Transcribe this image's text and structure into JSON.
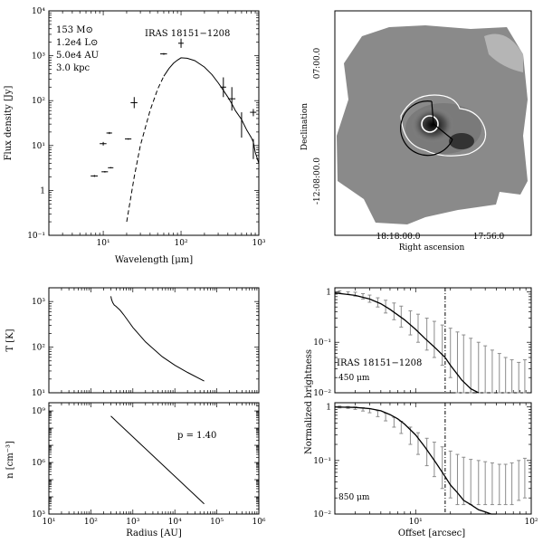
{
  "chart_data": [
    {
      "type": "scatter",
      "name": "sed",
      "xlabel": "Wavelength [μm]",
      "ylabel": "Flux density [Jy]",
      "xscale": "log",
      "yscale": "log",
      "xlim": [
        2,
        1000
      ],
      "ylim": [
        0.1,
        10000
      ],
      "xticks": [
        {
          "v": 10,
          "t": "10¹"
        },
        {
          "v": 100,
          "t": "10²"
        },
        {
          "v": 1000,
          "t": "10³"
        }
      ],
      "yticks": [
        {
          "v": 0.1,
          "t": "10⁻¹"
        },
        {
          "v": 1,
          "t": "1"
        },
        {
          "v": 10,
          "t": "10¹"
        },
        {
          "v": 100,
          "t": "10²"
        },
        {
          "v": 1000,
          "t": "10³"
        },
        {
          "v": 10000,
          "t": "10⁴"
        }
      ],
      "object": "IRAS 18151−1208",
      "annotations": [
        "153 M⊙",
        "1.2e4 L⊙",
        "5.0e4 AU",
        "3.0 kpc"
      ],
      "points": [
        {
          "x": 7.7,
          "y": 2.1,
          "hx": 0.8,
          "lo": 2.0,
          "hi": 2.2
        },
        {
          "x": 10,
          "y": 11,
          "hx": 1.0,
          "lo": 10,
          "hi": 12
        },
        {
          "x": 10.5,
          "y": 2.6,
          "hx": 1.0,
          "lo": 2.5,
          "hi": 2.7
        },
        {
          "x": 12,
          "y": 19,
          "hx": 1.0,
          "lo": 18,
          "hi": 20
        },
        {
          "x": 12.5,
          "y": 3.2,
          "hx": 1.0,
          "lo": 3.1,
          "hi": 3.3
        },
        {
          "x": 21,
          "y": 14,
          "hx": 2.0,
          "lo": 13.5,
          "hi": 14.5
        },
        {
          "x": 25,
          "y": 90,
          "hx": 2.5,
          "lo": 68,
          "hi": 120
        },
        {
          "x": 60,
          "y": 1100,
          "hx": 6,
          "lo": 1050,
          "hi": 1150
        },
        {
          "x": 100,
          "y": 1900,
          "hx": 8,
          "lo": 1500,
          "hi": 2400
        },
        {
          "x": 350,
          "y": 200,
          "hx": 30,
          "lo": 120,
          "hi": 330
        },
        {
          "x": 450,
          "y": 110,
          "hx": 50,
          "lo": 60,
          "hi": 200
        },
        {
          "x": 600,
          "y": 30,
          "hx": 0,
          "lo": 15,
          "hi": 55
        },
        {
          "x": 850,
          "y": 55,
          "hx": 80,
          "lo": 45,
          "hi": 65
        },
        {
          "x": 850,
          "y": 9,
          "hx": 0,
          "lo": 5,
          "hi": 14
        },
        {
          "x": 1000,
          "y": 2.2,
          "hx": 0,
          "lo": 1.8,
          "hi": 2.6
        }
      ],
      "model": {
        "x": [
          20,
          25,
          30,
          40,
          50,
          60,
          70,
          80,
          90,
          100,
          120,
          150,
          200,
          250,
          300,
          350,
          400,
          450,
          500,
          600,
          700,
          800,
          850,
          900,
          1000
        ],
        "y": [
          0.2,
          2,
          10,
          60,
          180,
          350,
          520,
          680,
          800,
          900,
          880,
          780,
          560,
          380,
          250,
          170,
          120,
          85,
          60,
          38,
          22,
          15,
          12,
          7,
          4
        ]
      }
    },
    {
      "type": "image",
      "name": "map",
      "xlabel": "Right ascension",
      "ylabel": "Declination",
      "xticks": [
        "18:18:00.0",
        "17:56.0"
      ],
      "yticks": [
        "07:00.0",
        "-12:08:00.0"
      ]
    },
    {
      "type": "line",
      "name": "temperature",
      "ylabel": "T [K]",
      "xscale": "log",
      "yscale": "log",
      "xlim": [
        10,
        1000000
      ],
      "ylim": [
        10,
        2000
      ],
      "yticks": [
        {
          "v": 10,
          "t": "10¹"
        },
        {
          "v": 100,
          "t": "10²"
        },
        {
          "v": 1000,
          "t": "10³"
        }
      ],
      "x": [
        300,
        310,
        330,
        360,
        400,
        500,
        600,
        800,
        1000,
        2000,
        5000,
        10000,
        20000,
        50000
      ],
      "y": [
        1300,
        1120,
        950,
        840,
        780,
        640,
        520,
        360,
        270,
        130,
        62,
        40,
        28,
        18
      ]
    },
    {
      "type": "line",
      "name": "density",
      "xlabel": "Radius [AU]",
      "ylabel": "n [cm⁻³]",
      "xscale": "log",
      "yscale": "log",
      "xlim": [
        10,
        1000000
      ],
      "ylim": [
        1000,
        3000000000
      ],
      "xticks": [
        {
          "v": 10,
          "t": "10¹"
        },
        {
          "v": 100,
          "t": "10²"
        },
        {
          "v": 1000,
          "t": "10³"
        },
        {
          "v": 10000,
          "t": "10⁴"
        },
        {
          "v": 100000,
          "t": "10⁵"
        },
        {
          "v": 1000000,
          "t": "10⁶"
        }
      ],
      "yticks": [
        {
          "v": 1000,
          "t": "10³"
        },
        {
          "v": 1000000,
          "t": "10⁶"
        },
        {
          "v": 1000000000,
          "t": "10⁹"
        }
      ],
      "annotation": "p = 1.40",
      "x": [
        300,
        50000
      ],
      "y": [
        500000000,
        3900
      ]
    },
    {
      "type": "line",
      "name": "profile450",
      "ylabel": "Normalized brightness",
      "xscale": "log",
      "yscale": "log",
      "xlim": [
        2,
        100
      ],
      "ylim": [
        0.01,
        1.2
      ],
      "yticks": [
        {
          "v": 0.01,
          "t": "10⁻²"
        },
        {
          "v": 0.1,
          "t": "10⁻¹"
        },
        {
          "v": 1,
          "t": "1"
        }
      ],
      "object": "IRAS 18151−1208",
      "band": "450 μm",
      "beam_x": 18,
      "model": {
        "x": [
          2,
          3,
          4,
          5,
          6,
          8,
          10,
          12,
          15,
          18,
          20,
          25,
          30,
          35
        ],
        "y": [
          0.95,
          0.85,
          0.72,
          0.58,
          0.45,
          0.28,
          0.18,
          0.12,
          0.075,
          0.05,
          0.035,
          0.018,
          0.012,
          0.01
        ]
      },
      "data": {
        "x": [
          2.2,
          2.6,
          3,
          3.5,
          4,
          4.7,
          5.5,
          6.5,
          7.5,
          9,
          10.5,
          12.5,
          14.5,
          17,
          20,
          23,
          26,
          30,
          35,
          40,
          46,
          53,
          60,
          68,
          78,
          88
        ],
        "y": [
          1.0,
          0.95,
          0.9,
          0.82,
          0.74,
          0.62,
          0.52,
          0.42,
          0.34,
          0.26,
          0.2,
          0.16,
          0.13,
          0.1,
          0.085,
          0.07,
          0.06,
          0.05,
          0.04,
          0.035,
          0.03,
          0.025,
          0.022,
          0.02,
          0.02,
          0.022
        ],
        "lo": [
          0.95,
          0.9,
          0.82,
          0.72,
          0.62,
          0.5,
          0.38,
          0.28,
          0.2,
          0.14,
          0.1,
          0.07,
          0.05,
          0.035,
          0.02,
          0.01,
          0.01,
          0.01,
          0.01,
          0.01,
          0.01,
          0.01,
          0.01,
          0.01,
          0.01,
          0.01
        ],
        "hi": [
          1.05,
          1.0,
          0.98,
          0.92,
          0.86,
          0.76,
          0.68,
          0.6,
          0.52,
          0.42,
          0.36,
          0.3,
          0.26,
          0.22,
          0.19,
          0.16,
          0.14,
          0.12,
          0.1,
          0.085,
          0.07,
          0.06,
          0.05,
          0.045,
          0.04,
          0.045
        ]
      }
    },
    {
      "type": "line",
      "name": "profile850",
      "xlabel": "Offset [arcsec]",
      "xscale": "log",
      "yscale": "log",
      "xlim": [
        2,
        100
      ],
      "ylim": [
        0.01,
        1.2
      ],
      "xticks": [
        {
          "v": 10,
          "t": "10¹"
        },
        {
          "v": 100,
          "t": "10²"
        }
      ],
      "yticks": [
        {
          "v": 0.01,
          "t": "10⁻²"
        },
        {
          "v": 0.1,
          "t": "10⁻¹"
        },
        {
          "v": 1,
          "t": "1"
        }
      ],
      "band": "850 μm",
      "beam_x": 18,
      "model": {
        "x": [
          2,
          3,
          4,
          5,
          6,
          7,
          8,
          10,
          12,
          15,
          18,
          20,
          23,
          26,
          30,
          35,
          40,
          45,
          50
        ],
        "y": [
          1.0,
          0.98,
          0.93,
          0.85,
          0.72,
          0.6,
          0.48,
          0.3,
          0.18,
          0.09,
          0.05,
          0.035,
          0.025,
          0.018,
          0.015,
          0.012,
          0.011,
          0.01,
          0.01
        ]
      },
      "data": {
        "x": [
          2.2,
          2.6,
          3,
          3.5,
          4,
          4.7,
          5.5,
          6.5,
          7.5,
          9,
          10.5,
          12.5,
          14.5,
          17,
          20,
          23,
          26,
          30,
          35,
          40,
          46,
          53,
          60,
          68,
          78,
          88
        ],
        "y": [
          1.0,
          0.98,
          0.95,
          0.9,
          0.85,
          0.75,
          0.65,
          0.52,
          0.42,
          0.3,
          0.22,
          0.16,
          0.13,
          0.1,
          0.08,
          0.065,
          0.055,
          0.05,
          0.045,
          0.042,
          0.04,
          0.038,
          0.04,
          0.045,
          0.05,
          0.06
        ],
        "lo": [
          0.96,
          0.94,
          0.9,
          0.84,
          0.78,
          0.66,
          0.55,
          0.42,
          0.32,
          0.2,
          0.13,
          0.08,
          0.05,
          0.03,
          0.02,
          0.015,
          0.015,
          0.015,
          0.015,
          0.015,
          0.015,
          0.015,
          0.015,
          0.015,
          0.018,
          0.02
        ],
        "hi": [
          1.04,
          1.02,
          1.0,
          0.97,
          0.93,
          0.85,
          0.76,
          0.64,
          0.54,
          0.42,
          0.33,
          0.26,
          0.22,
          0.18,
          0.15,
          0.13,
          0.115,
          0.105,
          0.1,
          0.095,
          0.09,
          0.085,
          0.085,
          0.09,
          0.1,
          0.11
        ]
      }
    }
  ]
}
